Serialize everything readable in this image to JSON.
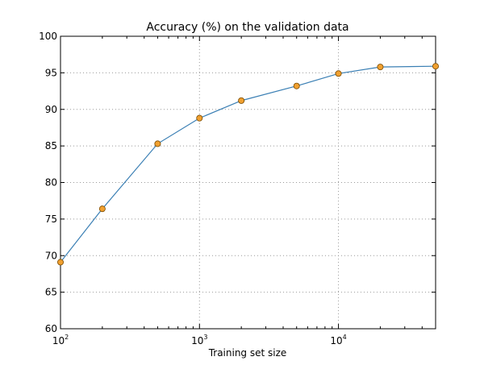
{
  "chart_data": {
    "type": "line",
    "title": "Accuracy (%) on the validation data",
    "xlabel": "Training set size",
    "ylabel": "",
    "xscale": "log",
    "xlim": [
      100,
      50000
    ],
    "ylim": [
      60,
      100
    ],
    "grid": true,
    "x_ticks": [
      {
        "value": 100,
        "base": "10",
        "exp": "2"
      },
      {
        "value": 1000,
        "base": "10",
        "exp": "3"
      },
      {
        "value": 10000,
        "base": "10",
        "exp": "4"
      }
    ],
    "y_ticks": [
      60,
      65,
      70,
      75,
      80,
      85,
      90,
      95,
      100
    ],
    "series": [
      {
        "x": [
          100,
          200,
          500,
          1000,
          2000,
          5000,
          10000,
          20000,
          50000
        ],
        "y": [
          69.1,
          76.4,
          85.3,
          88.8,
          91.2,
          93.2,
          94.9,
          95.8,
          95.9
        ]
      }
    ],
    "colors": {
      "line": "#3a7fb4",
      "marker": "#f0a030",
      "marker_edge": "#7a4a00",
      "grid": "#999999"
    }
  }
}
